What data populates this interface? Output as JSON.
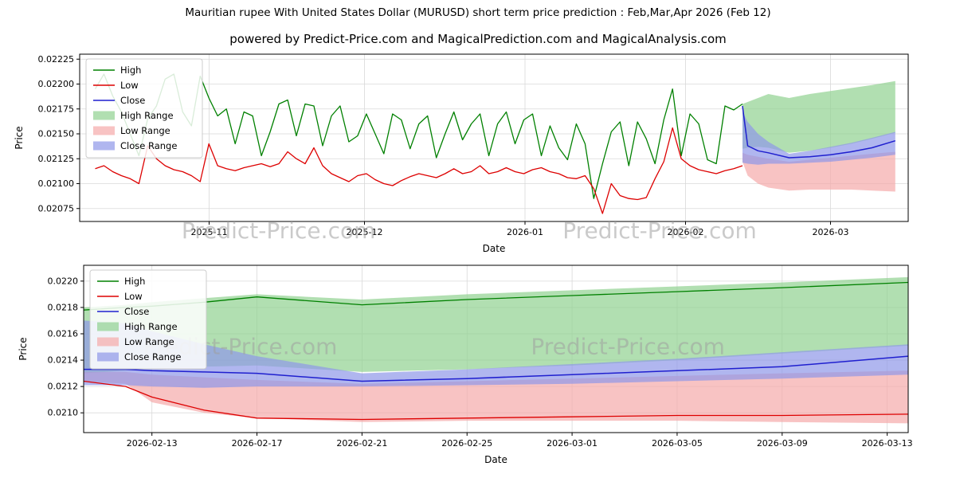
{
  "figure": {
    "title": "Mauritian rupee With United States Dollar (MURUSD) short term price prediction : Feb,Mar,Apr 2026 (Feb 12)",
    "subtitle": "powered by Predict-Price.com and MagicalPrediction.com and MagicalAnalysis.com",
    "watermark": "Predict-Price.com",
    "background": "#ffffff"
  },
  "colors": {
    "high_line": "#008000",
    "low_line": "#dd0000",
    "close_line": "#1f1fcf",
    "high_fill": "#90d190",
    "low_fill": "#f5aaaa",
    "close_fill": "#8f97e8",
    "grid": "#d9d9d9",
    "watermark": "#9e9e9e"
  },
  "legend": [
    {
      "label": "High",
      "kind": "line",
      "color": "#008000"
    },
    {
      "label": "Low",
      "kind": "line",
      "color": "#dd0000"
    },
    {
      "label": "Close",
      "kind": "line",
      "color": "#1f1fcf"
    },
    {
      "label": "High Range",
      "kind": "patch",
      "color": "#90d190"
    },
    {
      "label": "Low Range",
      "kind": "patch",
      "color": "#f5aaaa"
    },
    {
      "label": "Close Range",
      "kind": "patch",
      "color": "#8f97e8"
    }
  ],
  "chart_data": [
    {
      "type": "line",
      "name": "history-and-prediction",
      "xlabel": "Date",
      "ylabel": "Price",
      "grid": true,
      "legend_position": "upper-left",
      "xlim": [
        -3,
        157
      ],
      "ylim": [
        0.02062,
        0.0223
      ],
      "xticks": [
        {
          "d": 22,
          "label": "2025-11"
        },
        {
          "d": 52,
          "label": "2025-12"
        },
        {
          "d": 83,
          "label": "2026-01"
        },
        {
          "d": 114,
          "label": "2026-02"
        },
        {
          "d": 142,
          "label": "2026-03"
        }
      ],
      "yticks": [
        {
          "v": 0.02075,
          "label": "0.02075"
        },
        {
          "v": 0.021,
          "label": "0.02100"
        },
        {
          "v": 0.02125,
          "label": "0.02125"
        },
        {
          "v": 0.0215,
          "label": "0.02150"
        },
        {
          "v": 0.02175,
          "label": "0.02175"
        },
        {
          "v": 0.022,
          "label": "0.02200"
        },
        {
          "v": 0.02225,
          "label": "0.02225"
        }
      ],
      "history": {
        "day_start": 0,
        "day_end": 125,
        "high": [
          0.02195,
          0.0221,
          0.02188,
          0.02172,
          0.0215,
          0.02128,
          0.02165,
          0.02178,
          0.02205,
          0.0221,
          0.02172,
          0.02158,
          0.02208,
          0.02186,
          0.02168,
          0.02175,
          0.0214,
          0.02172,
          0.02168,
          0.02128,
          0.02152,
          0.0218,
          0.02184,
          0.02148,
          0.0218,
          0.02178,
          0.02138,
          0.02168,
          0.02178,
          0.02142,
          0.02148,
          0.0217,
          0.0215,
          0.0213,
          0.0217,
          0.02164,
          0.02135,
          0.0216,
          0.02168,
          0.02126,
          0.0215,
          0.02172,
          0.02144,
          0.0216,
          0.0217,
          0.02128,
          0.0216,
          0.02172,
          0.0214,
          0.02164,
          0.0217,
          0.02128,
          0.02158,
          0.02136,
          0.02124,
          0.0216,
          0.0214,
          0.02085,
          0.0212,
          0.02152,
          0.02162,
          0.02118,
          0.02162,
          0.02145,
          0.0212,
          0.02164,
          0.02195,
          0.02128,
          0.0217,
          0.0216,
          0.02124,
          0.0212,
          0.02178,
          0.02174,
          0.0218
        ],
        "low": [
          0.02115,
          0.02118,
          0.02112,
          0.02108,
          0.02105,
          0.021,
          0.02138,
          0.02125,
          0.02118,
          0.02114,
          0.02112,
          0.02108,
          0.02102,
          0.0214,
          0.02118,
          0.02115,
          0.02113,
          0.02116,
          0.02118,
          0.0212,
          0.02117,
          0.0212,
          0.02132,
          0.02125,
          0.0212,
          0.02136,
          0.02118,
          0.0211,
          0.02106,
          0.02102,
          0.02108,
          0.0211,
          0.02104,
          0.021,
          0.02098,
          0.02103,
          0.02107,
          0.0211,
          0.02108,
          0.02106,
          0.0211,
          0.02115,
          0.0211,
          0.02112,
          0.02118,
          0.0211,
          0.02112,
          0.02116,
          0.02112,
          0.0211,
          0.02114,
          0.02116,
          0.02112,
          0.0211,
          0.02106,
          0.02105,
          0.02108,
          0.02095,
          0.0207,
          0.021,
          0.02088,
          0.02085,
          0.02084,
          0.02086,
          0.02105,
          0.02122,
          0.02156,
          0.02125,
          0.02118,
          0.02114,
          0.02112,
          0.0211,
          0.02113,
          0.02115,
          0.02118
        ]
      },
      "prediction": {
        "x": [
          125,
          126,
          128,
          130,
          134,
          138,
          142,
          146,
          150,
          154.5
        ],
        "close": [
          0.02178,
          0.02138,
          0.02133,
          0.02131,
          0.02126,
          0.02127,
          0.02129,
          0.02132,
          0.02136,
          0.02143
        ],
        "bands": {
          "high_upper": [
            0.0218,
            0.02182,
            0.02186,
            0.0219,
            0.02186,
            0.0219,
            0.02193,
            0.02196,
            0.02199,
            0.02203
          ],
          "high_lower": [
            0.02135,
            0.02136,
            0.02137,
            0.02136,
            0.02131,
            0.02133,
            0.02136,
            0.0214,
            0.02145,
            0.02151
          ],
          "low_upper": [
            0.02131,
            0.02129,
            0.02127,
            0.02125,
            0.02122,
            0.02124,
            0.02126,
            0.02128,
            0.0213,
            0.02132
          ],
          "low_lower": [
            0.02122,
            0.02108,
            0.021,
            0.02096,
            0.02093,
            0.02094,
            0.02094,
            0.02094,
            0.02093,
            0.02092
          ],
          "close_upper": [
            0.02172,
            0.02162,
            0.0215,
            0.02142,
            0.0213,
            0.02133,
            0.02137,
            0.02141,
            0.02146,
            0.02152
          ],
          "close_lower": [
            0.02121,
            0.0212,
            0.02119,
            0.0212,
            0.0212,
            0.02121,
            0.02122,
            0.02124,
            0.02126,
            0.02129
          ]
        }
      },
      "watermarks": [
        {
          "fx": 0.24,
          "fy": 1.1
        },
        {
          "fx": 0.7,
          "fy": 1.1
        }
      ]
    },
    {
      "type": "line",
      "name": "prediction-detail",
      "xlabel": "Date",
      "ylabel": "Price",
      "grid": true,
      "legend_position": "upper-left",
      "xlim": [
        123.4,
        154.8
      ],
      "ylim": [
        0.02085,
        0.02212
      ],
      "xticks": [
        {
          "d": 126,
          "label": "2026-02-13"
        },
        {
          "d": 130,
          "label": "2026-02-17"
        },
        {
          "d": 134,
          "label": "2026-02-21"
        },
        {
          "d": 138,
          "label": "2026-02-25"
        },
        {
          "d": 142,
          "label": "2026-03-01"
        },
        {
          "d": 146,
          "label": "2026-03-05"
        },
        {
          "d": 150,
          "label": "2026-03-09"
        },
        {
          "d": 154,
          "label": "2026-03-13"
        }
      ],
      "yticks": [
        {
          "v": 0.021,
          "label": "0.0210"
        },
        {
          "v": 0.0212,
          "label": "0.0212"
        },
        {
          "v": 0.0214,
          "label": "0.0214"
        },
        {
          "v": 0.0216,
          "label": "0.0216"
        },
        {
          "v": 0.0218,
          "label": "0.0218"
        },
        {
          "v": 0.022,
          "label": "0.0220"
        }
      ],
      "prediction": {
        "x": [
          123.4,
          125,
          126,
          128,
          130,
          134,
          138,
          142,
          146,
          150,
          154.8
        ],
        "high": [
          0.02178,
          0.0218,
          0.02181,
          0.02184,
          0.02188,
          0.02182,
          0.02186,
          0.02189,
          0.02192,
          0.02195,
          0.02199
        ],
        "low": [
          0.02124,
          0.0212,
          0.02112,
          0.02102,
          0.02096,
          0.02095,
          0.02096,
          0.02097,
          0.02098,
          0.02098,
          0.02099
        ],
        "close": [
          0.02133,
          0.02133,
          0.02132,
          0.02131,
          0.0213,
          0.02124,
          0.02126,
          0.02129,
          0.02132,
          0.02135,
          0.02143
        ],
        "bands": {
          "high_upper": [
            0.0218,
            0.02182,
            0.02184,
            0.02187,
            0.0219,
            0.02186,
            0.0219,
            0.02193,
            0.02196,
            0.02199,
            0.02203
          ],
          "high_lower": [
            0.0213,
            0.02132,
            0.02134,
            0.02135,
            0.02136,
            0.02131,
            0.02133,
            0.02136,
            0.0214,
            0.02145,
            0.02151
          ],
          "low_upper": [
            0.02131,
            0.02131,
            0.02129,
            0.02127,
            0.02125,
            0.02122,
            0.02124,
            0.02126,
            0.02128,
            0.0213,
            0.02132
          ],
          "low_lower": [
            0.02124,
            0.02122,
            0.02108,
            0.021,
            0.02096,
            0.02093,
            0.02094,
            0.02094,
            0.02094,
            0.02093,
            0.02092
          ],
          "close_upper": [
            0.0217,
            0.02168,
            0.02162,
            0.02152,
            0.02143,
            0.0213,
            0.02133,
            0.02137,
            0.02141,
            0.02146,
            0.02152
          ],
          "close_lower": [
            0.02121,
            0.02121,
            0.0212,
            0.02119,
            0.0212,
            0.0212,
            0.02121,
            0.02122,
            0.02124,
            0.02126,
            0.02129
          ]
        }
      },
      "watermarks": [
        {
          "fx": 0.19,
          "fy": 0.53
        },
        {
          "fx": 0.66,
          "fy": 0.53
        }
      ]
    }
  ]
}
